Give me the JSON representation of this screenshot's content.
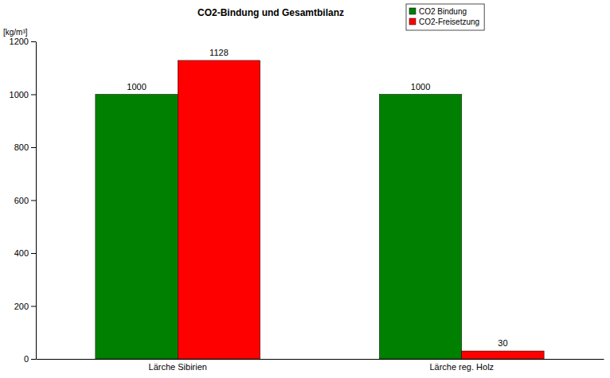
{
  "chart_data": {
    "type": "bar",
    "title": "CO2-Bindung und Gesamtbilanz",
    "ylabel": "[kg/m³]",
    "categories": [
      "Lärche Sibirien",
      "Lärche reg. Holz"
    ],
    "series": [
      {
        "name": "CO2 Bindung",
        "color": "#008000",
        "values": [
          1000,
          1000
        ]
      },
      {
        "name": "CO2-Freisetzung",
        "color": "#ff0000",
        "values": [
          1128,
          30
        ]
      }
    ],
    "ylim": [
      0,
      1200
    ],
    "yticks": [
      0,
      200,
      400,
      600,
      800,
      1000,
      1200
    ],
    "grid": false,
    "legend": "top-right",
    "data_labels": true
  }
}
